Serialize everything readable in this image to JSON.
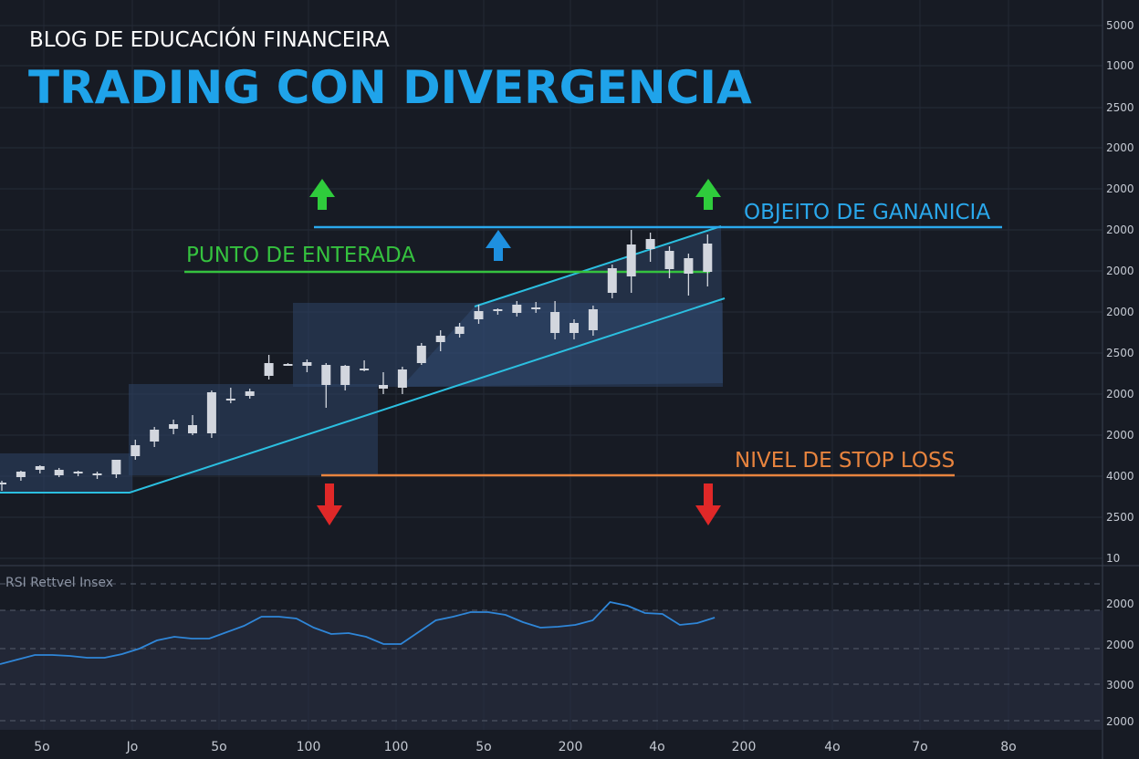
{
  "header": {
    "subtitle": "BLOG DE EDUCACIÓN FINANCEIRA",
    "title": "TRADING CON DIVERGENCIA"
  },
  "annotations": {
    "take_profit": "OBJEITO DE GANANICIA",
    "entry": "PUNTO DE ENTERADA",
    "stop_loss": "NIVEL DE STOP LOSS"
  },
  "rsi_panel": {
    "label": "RSI Rettvel Insex"
  },
  "colors": {
    "background": "#171b24",
    "title": "#1fa3ea",
    "entry": "#35c23f",
    "take_profit": "#2aa8ec",
    "stop_loss": "#e8843e",
    "arrow_up_green": "#2fcc3c",
    "arrow_up_blue": "#1e90e0",
    "arrow_down_red": "#e02828",
    "trendline": "#2bbfe0",
    "rsi_line": "#2f86d8",
    "candle": "#d2d6de",
    "zone": "#2d4466"
  },
  "chart_data": {
    "type": "candlestick",
    "y_axis_labels": [
      "5000",
      "1000",
      "2500",
      "2000",
      "2000",
      "2000",
      "2000",
      "2000",
      "2500",
      "2000",
      "2000",
      "4000",
      "2500",
      "10"
    ],
    "x_axis_labels": [
      "5o",
      "Jo",
      "5o",
      "100",
      "100",
      "5o",
      "200",
      "4o",
      "200",
      "4o",
      "7o",
      "8o"
    ],
    "rsi_axis_labels": [
      "2000",
      "2000",
      "3000",
      "2000"
    ],
    "candles": [
      {
        "o": 11,
        "h": 13,
        "l": 2,
        "c": 9
      },
      {
        "o": 17,
        "h": 24,
        "l": 13,
        "c": 23
      },
      {
        "o": 25,
        "h": 30,
        "l": 21,
        "c": 29
      },
      {
        "o": 19,
        "h": 27,
        "l": 17,
        "c": 25
      },
      {
        "o": 21,
        "h": 24,
        "l": 18,
        "c": 23
      },
      {
        "o": 19,
        "h": 23,
        "l": 15,
        "c": 21
      },
      {
        "o": 20,
        "h": 34,
        "l": 16,
        "c": 36
      },
      {
        "o": 40,
        "h": 58,
        "l": 36,
        "c": 52
      },
      {
        "o": 56,
        "h": 72,
        "l": 50,
        "c": 69
      },
      {
        "o": 70,
        "h": 80,
        "l": 64,
        "c": 75
      },
      {
        "o": 74,
        "h": 85,
        "l": 63,
        "c": 65
      },
      {
        "o": 65,
        "h": 112,
        "l": 60,
        "c": 110
      },
      {
        "o": 101,
        "h": 115,
        "l": 98,
        "c": 103
      },
      {
        "o": 106,
        "h": 114,
        "l": 103,
        "c": 111
      },
      {
        "o": 128,
        "h": 151,
        "l": 124,
        "c": 142
      },
      {
        "o": 141,
        "h": 142,
        "l": 141,
        "c": 141
      },
      {
        "o": 139,
        "h": 146,
        "l": 132,
        "c": 143
      },
      {
        "o": 140,
        "h": 142,
        "l": 93,
        "c": 118
      },
      {
        "o": 118,
        "h": 140,
        "l": 112,
        "c": 139
      },
      {
        "o": 135,
        "h": 145,
        "l": 133,
        "c": 136
      },
      {
        "o": 118,
        "h": 132,
        "l": 108,
        "c": 114
      },
      {
        "o": 115,
        "h": 138,
        "l": 108,
        "c": 135
      },
      {
        "o": 142,
        "h": 164,
        "l": 140,
        "c": 161
      },
      {
        "o": 165,
        "h": 178,
        "l": 155,
        "c": 172
      },
      {
        "o": 174,
        "h": 186,
        "l": 170,
        "c": 182
      },
      {
        "o": 190,
        "h": 206,
        "l": 185,
        "c": 199
      },
      {
        "o": 199,
        "h": 202,
        "l": 195,
        "c": 201
      },
      {
        "o": 197,
        "h": 210,
        "l": 193,
        "c": 206
      },
      {
        "o": 201,
        "h": 209,
        "l": 197,
        "c": 203
      },
      {
        "o": 198,
        "h": 210,
        "l": 168,
        "c": 175
      },
      {
        "o": 175,
        "h": 190,
        "l": 168,
        "c": 186
      },
      {
        "o": 178,
        "h": 205,
        "l": 172,
        "c": 201
      },
      {
        "o": 219,
        "h": 250,
        "l": 213,
        "c": 246
      },
      {
        "o": 237,
        "h": 288,
        "l": 219,
        "c": 272
      },
      {
        "o": 267,
        "h": 285,
        "l": 253,
        "c": 278
      },
      {
        "o": 265,
        "h": 270,
        "l": 235,
        "c": 245
      },
      {
        "o": 240,
        "h": 262,
        "l": 216,
        "c": 257
      },
      {
        "o": 242,
        "h": 283,
        "l": 226,
        "c": 273
      }
    ],
    "levels": {
      "take_profit": 261,
      "entry": 213,
      "stop_loss": 0
    },
    "rsi": [
      46,
      51,
      56,
      56,
      55,
      53,
      53,
      57,
      63,
      72,
      76,
      74,
      74,
      81,
      88,
      98,
      98,
      96,
      86,
      79,
      80,
      76,
      68,
      68,
      81,
      94,
      98,
      103,
      103,
      100,
      92,
      86,
      87,
      89,
      94,
      114,
      110,
      102,
      101,
      89,
      91,
      97
    ]
  }
}
